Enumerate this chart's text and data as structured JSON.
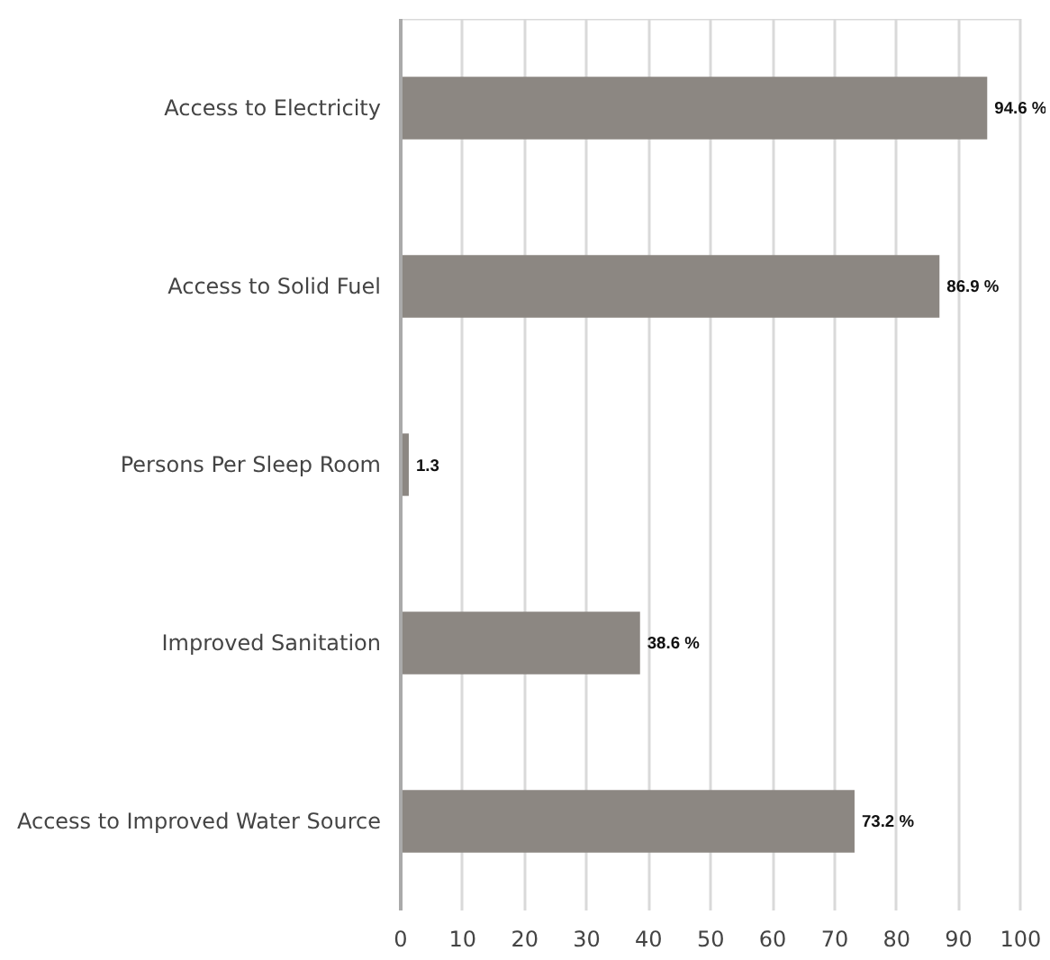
{
  "chart_data": {
    "type": "bar",
    "orientation": "horizontal",
    "categories": [
      "Access to Electricity",
      "Access to Solid Fuel",
      "Persons Per Sleep Room",
      "Improved Sanitation",
      "Access to Improved Water Source"
    ],
    "values": [
      94.6,
      86.9,
      1.3,
      38.6,
      73.2
    ],
    "value_labels": [
      "94.6 %",
      "86.9 %",
      "1.3",
      "38.6 %",
      "73.2 %"
    ],
    "color": "#8c8782",
    "xlim": [
      0,
      100
    ],
    "xticks": [
      0,
      10,
      20,
      30,
      40,
      50,
      60,
      70,
      80,
      90,
      100
    ],
    "grid": "x"
  }
}
